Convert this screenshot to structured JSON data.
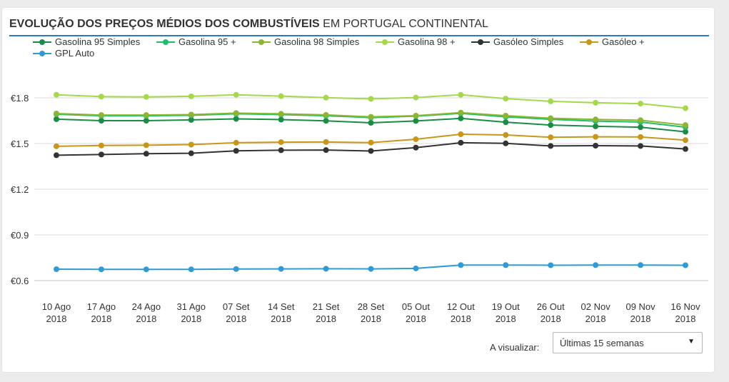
{
  "header": {
    "title_bold": "EVOLUÇÃO DOS PREÇOS MÉDIOS DOS COMBUSTÍVEIS",
    "title_rest": " EM PORTUGAL CONTINENTAL"
  },
  "controls": {
    "visualize_label": "A visualizar:",
    "selected_option": "Últimas 15 semanas",
    "arrow_icon": "caret-down-icon"
  },
  "chart_data": {
    "type": "line",
    "x": [
      "10 Ago 2018",
      "17 Ago 2018",
      "24 Ago 2018",
      "31 Ago 2018",
      "07 Set 2018",
      "14 Set 2018",
      "21 Set 2018",
      "28 Set 2018",
      "05 Out 2018",
      "12 Out 2018",
      "19 Out 2018",
      "26 Out 2018",
      "02 Nov 2018",
      "09 Nov 2018",
      "16 Nov 2018"
    ],
    "x_tick_lines": [
      [
        "10 Ago",
        "2018"
      ],
      [
        "17 Ago",
        "2018"
      ],
      [
        "24 Ago",
        "2018"
      ],
      [
        "31 Ago",
        "2018"
      ],
      [
        "07 Set",
        "2018"
      ],
      [
        "14 Set",
        "2018"
      ],
      [
        "21 Set",
        "2018"
      ],
      [
        "28 Set",
        "2018"
      ],
      [
        "05 Out",
        "2018"
      ],
      [
        "12 Out",
        "2018"
      ],
      [
        "19 Out",
        "2018"
      ],
      [
        "26 Out",
        "2018"
      ],
      [
        "02 Nov",
        "2018"
      ],
      [
        "09 Nov",
        "2018"
      ],
      [
        "16 Nov",
        "2018"
      ]
    ],
    "ylim": [
      0.6,
      1.8
    ],
    "yticks": [
      0.6,
      0.9,
      1.2,
      1.5,
      1.8
    ],
    "ytick_labels": [
      "€0.6",
      "€0.9",
      "€1.2",
      "€1.5",
      "€1.8"
    ],
    "grid": true,
    "legend_placement": "top-left",
    "series": [
      {
        "name": "Gasolina 95 Simples",
        "color": "#1a8c45",
        "values": [
          1.66,
          1.65,
          1.65,
          1.655,
          1.662,
          1.657,
          1.649,
          1.636,
          1.648,
          1.665,
          1.64,
          1.621,
          1.613,
          1.607,
          1.577
        ]
      },
      {
        "name": "Gasolina 95 +",
        "color": "#1fbf6a",
        "values": [
          1.692,
          1.682,
          1.682,
          1.685,
          1.695,
          1.69,
          1.682,
          1.67,
          1.68,
          1.698,
          1.675,
          1.659,
          1.647,
          1.641,
          1.607
        ]
      },
      {
        "name": "Gasolina 98 Simples",
        "color": "#8db52e",
        "values": [
          1.697,
          1.687,
          1.687,
          1.69,
          1.7,
          1.695,
          1.688,
          1.675,
          1.683,
          1.703,
          1.683,
          1.666,
          1.658,
          1.653,
          1.621
        ]
      },
      {
        "name": "Gasolina 98 +",
        "color": "#a4d94a",
        "values": [
          1.82,
          1.808,
          1.806,
          1.81,
          1.82,
          1.811,
          1.801,
          1.793,
          1.802,
          1.82,
          1.795,
          1.777,
          1.768,
          1.762,
          1.732
        ]
      },
      {
        "name": "Gasóleo Simples",
        "color": "#333333",
        "values": [
          1.423,
          1.428,
          1.433,
          1.436,
          1.452,
          1.456,
          1.457,
          1.451,
          1.473,
          1.505,
          1.501,
          1.484,
          1.486,
          1.484,
          1.464
        ]
      },
      {
        "name": "Gasóleo +",
        "color": "#c89718",
        "values": [
          1.482,
          1.487,
          1.489,
          1.493,
          1.505,
          1.509,
          1.51,
          1.506,
          1.528,
          1.561,
          1.556,
          1.541,
          1.544,
          1.543,
          1.522
        ]
      },
      {
        "name": "GPL Auto",
        "color": "#2e9bd6",
        "values": [
          0.675,
          0.674,
          0.674,
          0.674,
          0.676,
          0.677,
          0.678,
          0.677,
          0.68,
          0.702,
          0.702,
          0.701,
          0.702,
          0.702,
          0.701
        ]
      }
    ]
  }
}
